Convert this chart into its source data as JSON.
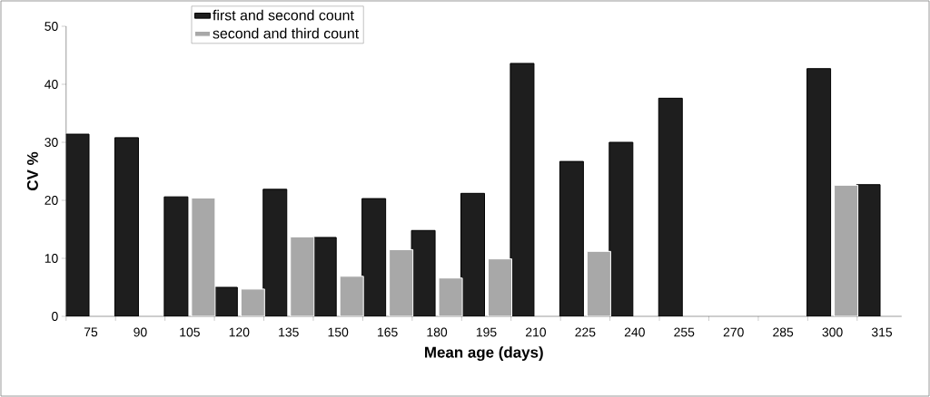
{
  "chart_data": {
    "type": "bar",
    "xlabel": "Mean age (days)",
    "ylabel": "CV %",
    "categories": [
      "75",
      "90",
      "105",
      "120",
      "135",
      "150",
      "165",
      "180",
      "195",
      "210",
      "225",
      "240",
      "255",
      "270",
      "285",
      "300",
      "315"
    ],
    "series": [
      {
        "name": "first and second count",
        "color": "#1e1e1e",
        "values": [
          31.4,
          30.8,
          20.6,
          5.0,
          21.9,
          13.6,
          20.3,
          14.8,
          21.2,
          43.6,
          26.7,
          30.0,
          37.6,
          null,
          null,
          42.7,
          22.7
        ]
      },
      {
        "name": "second and third count",
        "color": "#a8a8a8",
        "values": [
          null,
          null,
          20.4,
          4.7,
          13.7,
          6.9,
          11.5,
          6.6,
          9.9,
          null,
          11.2,
          null,
          null,
          null,
          null,
          22.6,
          null
        ]
      }
    ],
    "ylim": [
      0,
      50
    ],
    "yticks": [
      0,
      10,
      20,
      30,
      40,
      50
    ],
    "grid": false,
    "legend": "top"
  }
}
